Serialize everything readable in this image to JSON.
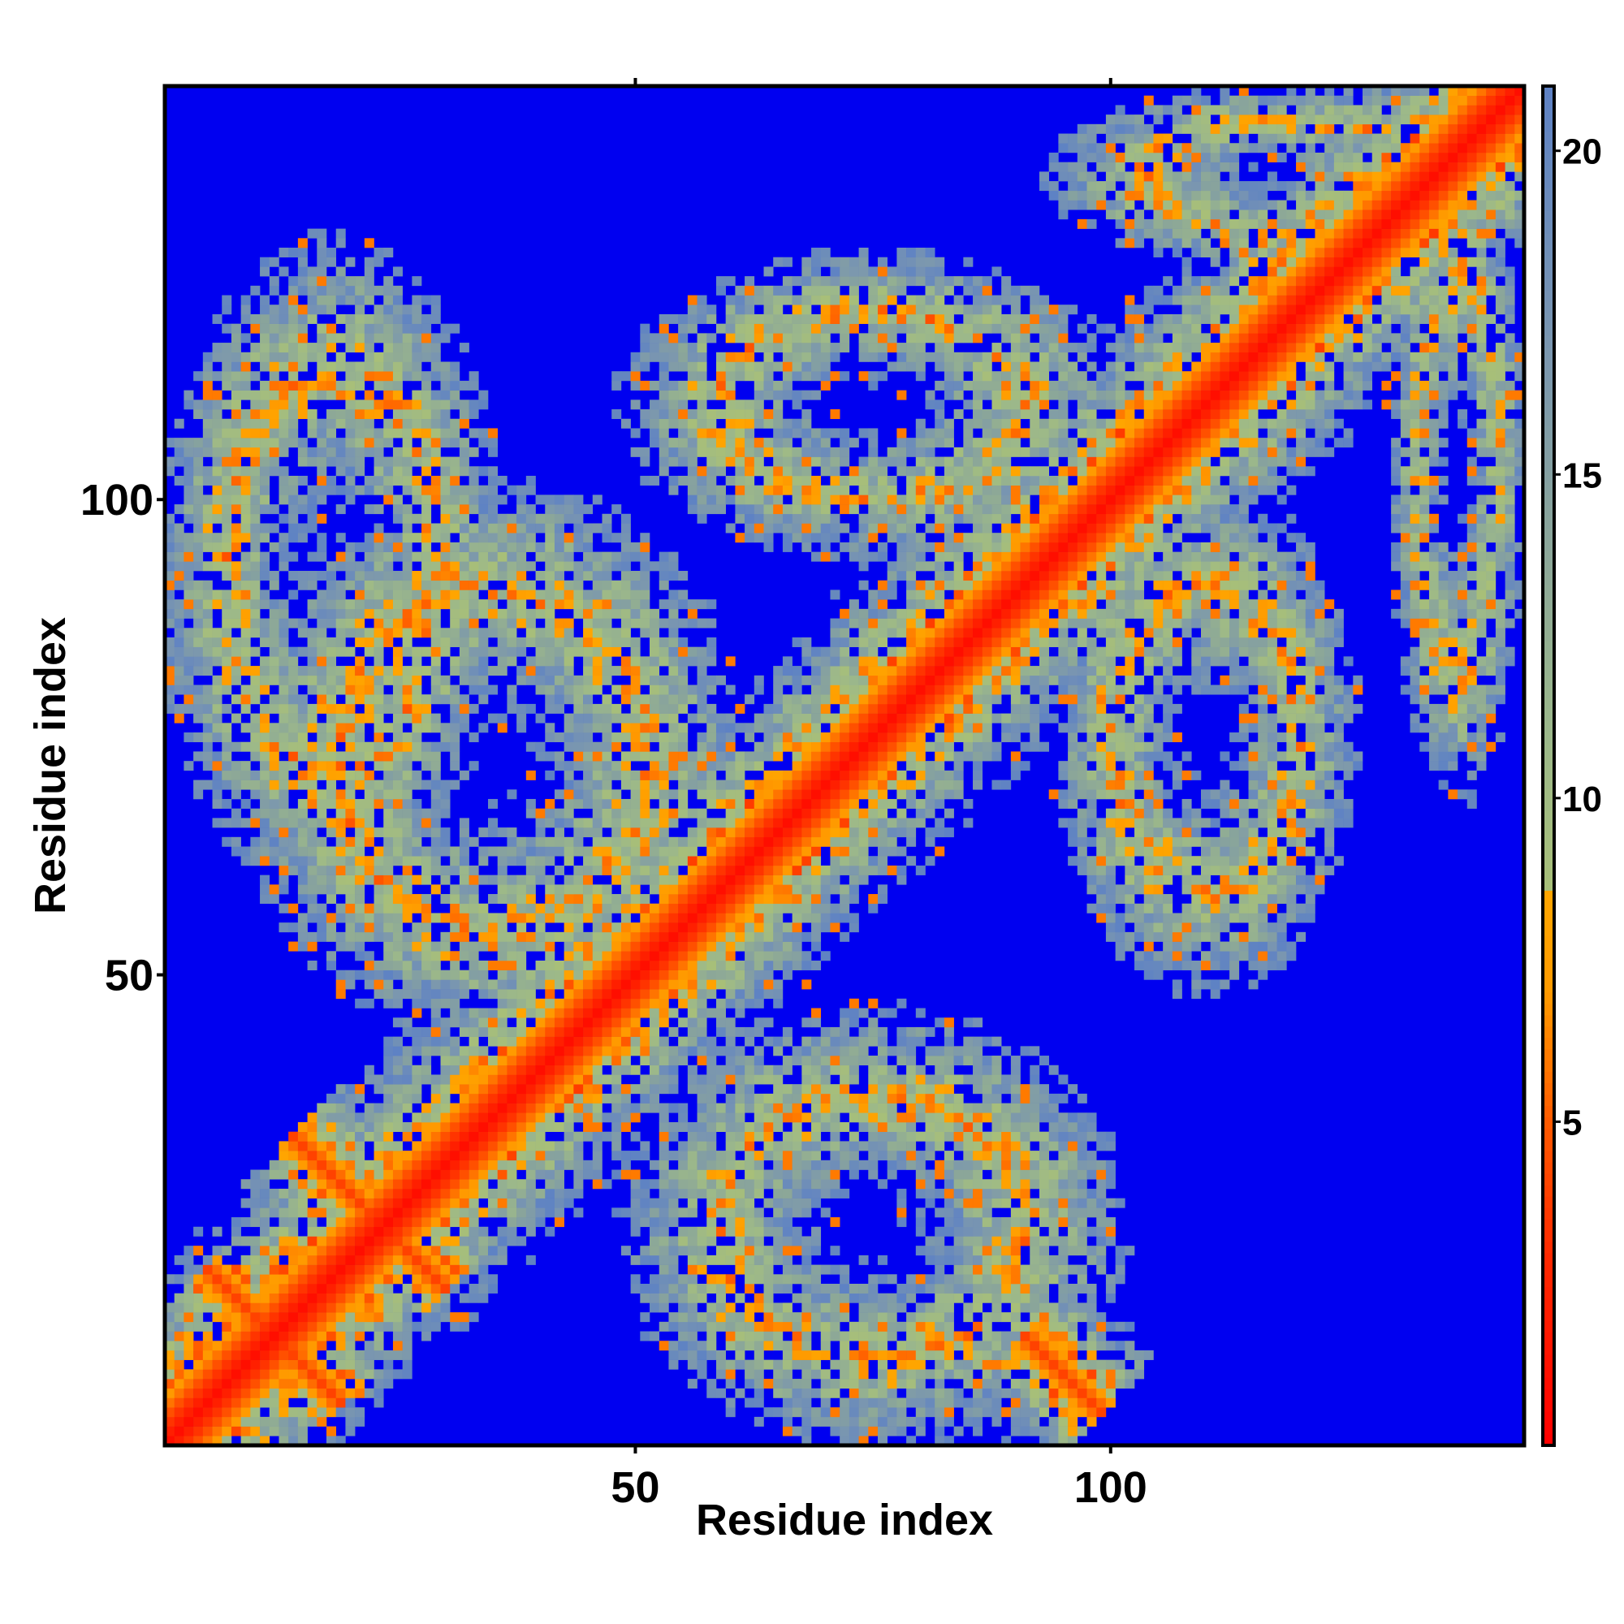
{
  "chart_data": {
    "type": "heatmap",
    "title": "",
    "xlabel": "Residue index",
    "ylabel": "Residue index",
    "n_residues": 143,
    "x_ticks": [
      50,
      100
    ],
    "y_ticks": [
      50,
      100
    ],
    "xlim": [
      1,
      143
    ],
    "ylim": [
      1,
      143
    ],
    "value_meaning": "pairwise distance, values above 21 shown as blue",
    "colorbar": {
      "ticks": [
        5,
        10,
        15,
        20
      ],
      "range": [
        0,
        21
      ],
      "stops": [
        {
          "value": 0,
          "color": "#ff0000"
        },
        {
          "value": 3,
          "color": "#ff2a00"
        },
        {
          "value": 5,
          "color": "#ff5a00"
        },
        {
          "value": 7,
          "color": "#ff9a00"
        },
        {
          "value": 8.4,
          "color": "#ffa500"
        },
        {
          "value": 8.5,
          "color": "#a8bf78"
        },
        {
          "value": 11,
          "color": "#9cb88a"
        },
        {
          "value": 14,
          "color": "#8aa59a"
        },
        {
          "value": 17,
          "color": "#7a96b0"
        },
        {
          "value": 21,
          "color": "#5e82c4"
        }
      ],
      "out_of_range_color": "#0000f0"
    },
    "contact_regions": [
      {
        "description": "main diagonal",
        "kind": "diagonal"
      },
      {
        "description": "antiparallel sheet near origin",
        "kind": "antidiagonal",
        "center": [
          12,
          12
        ],
        "length": 20
      },
      {
        "description": "antiparallel contact",
        "kind": "antidiagonal",
        "center": [
          22,
          25
        ],
        "length": 24
      },
      {
        "description": "lower block cluster",
        "kind": "blob",
        "x": [
          50,
          100
        ],
        "y": [
          2,
          45
        ]
      },
      {
        "description": "mid block cluster",
        "kind": "blob",
        "x": [
          10,
          60
        ],
        "y": [
          45,
          100
        ]
      },
      {
        "description": "upper-left band",
        "kind": "blob",
        "x": [
          1,
          35
        ],
        "y": [
          60,
          125
        ]
      },
      {
        "description": "upper middle cluster",
        "kind": "blob",
        "x": [
          50,
          100
        ],
        "y": [
          95,
          125
        ]
      },
      {
        "description": "upper-right near diagonal",
        "kind": "blob",
        "x": [
          95,
          143
        ],
        "y": [
          125,
          143
        ]
      },
      {
        "description": "right cluster",
        "kind": "blob",
        "x": [
          95,
          125
        ],
        "y": [
          50,
          100
        ]
      },
      {
        "description": "far right strip",
        "kind": "blob",
        "x": [
          130,
          143
        ],
        "y": [
          70,
          135
        ]
      },
      {
        "description": "bottom right contact",
        "kind": "antidiagonal",
        "center": [
          95,
          8
        ],
        "length": 12
      }
    ]
  }
}
